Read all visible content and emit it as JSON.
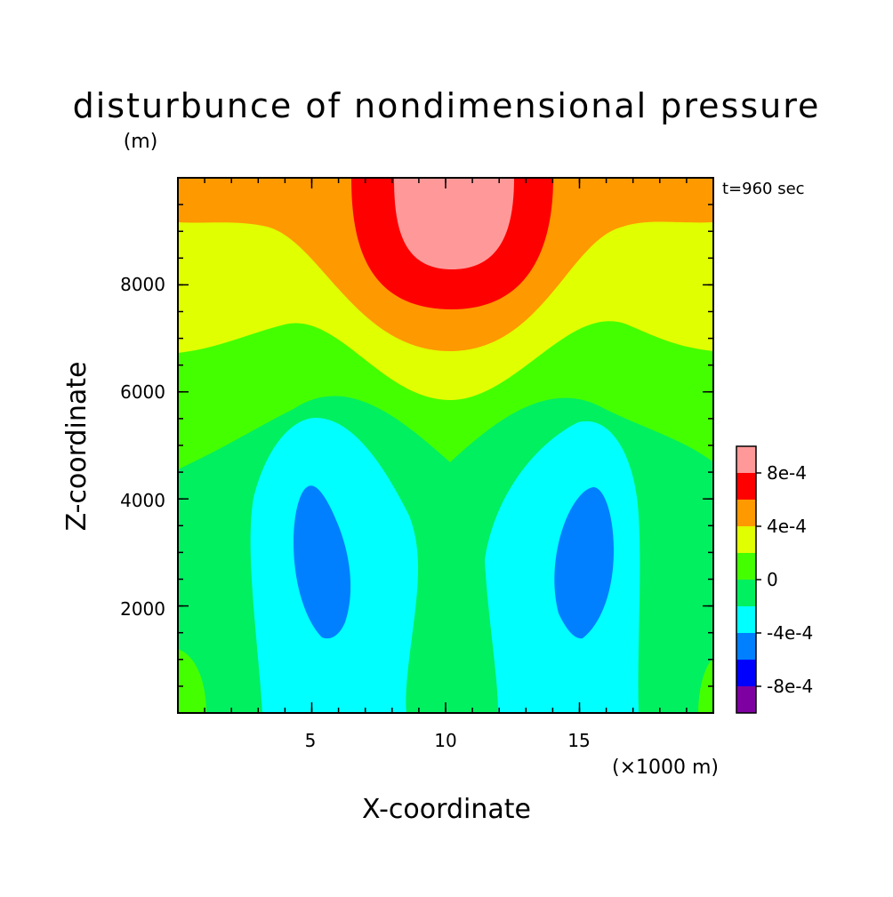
{
  "chart_data": {
    "type": "contour",
    "title": "disturbunce of nondimensional pressure",
    "ylabel_unit": "(m)",
    "timestamp": "t=960 sec",
    "xlabel": "X-coordinate",
    "ylabel": "Z-coordinate",
    "xunit": "(×1000 m)",
    "xlim": [
      0,
      20
    ],
    "ylim": [
      0,
      10000
    ],
    "xticks": [
      5,
      10,
      15
    ],
    "xtick_labels": [
      "5",
      "10",
      "15"
    ],
    "yticks": [
      2000,
      4000,
      6000,
      8000
    ],
    "ytick_labels": [
      "2000",
      "4000",
      "6000",
      "8000"
    ],
    "levels": [
      {
        "min": -0.0012,
        "max": -0.0008,
        "color": "#7f00a0"
      },
      {
        "min": -0.0008,
        "max": -0.0006,
        "color": "#0000ff"
      },
      {
        "min": -0.0006,
        "max": -0.0004,
        "color": "#0080ff"
      },
      {
        "min": -0.0004,
        "max": -0.0002,
        "color": "#00ffff"
      },
      {
        "min": -0.0002,
        "max": 0.0,
        "color": "#00f060"
      },
      {
        "min": 0.0,
        "max": 0.0002,
        "color": "#44ff00"
      },
      {
        "min": 0.0002,
        "max": 0.0004,
        "color": "#e0ff00"
      },
      {
        "min": 0.0004,
        "max": 0.0006,
        "color": "#ff9900"
      },
      {
        "min": 0.0006,
        "max": 0.0008,
        "color": "#ff0000"
      },
      {
        "min": 0.0008,
        "max": 0.001,
        "color": "#ff9999"
      }
    ],
    "colorbar_labels": [
      "8e-4",
      "4e-4",
      "0",
      "-4e-4",
      "-8e-4"
    ]
  }
}
